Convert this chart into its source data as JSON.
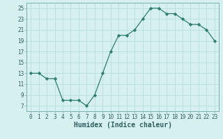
{
  "x": [
    0,
    1,
    2,
    3,
    4,
    5,
    6,
    7,
    8,
    9,
    10,
    11,
    12,
    13,
    14,
    15,
    16,
    17,
    18,
    19,
    20,
    21,
    22,
    23
  ],
  "y": [
    13,
    13,
    12,
    12,
    8,
    8,
    8,
    7,
    9,
    13,
    17,
    20,
    20,
    21,
    23,
    25,
    25,
    24,
    24,
    23,
    22,
    22,
    21,
    19
  ],
  "line_color": "#2e7d6e",
  "marker": "D",
  "marker_size": 2.2,
  "bg_color": "#d6efef",
  "grid_color": "#b8dede",
  "xlabel": "Humidex (Indice chaleur)",
  "ylim": [
    6,
    26
  ],
  "xlim": [
    -0.5,
    23.5
  ],
  "yticks": [
    7,
    9,
    11,
    13,
    15,
    17,
    19,
    21,
    23,
    25
  ],
  "xticks": [
    0,
    1,
    2,
    3,
    4,
    5,
    6,
    7,
    8,
    9,
    10,
    11,
    12,
    13,
    14,
    15,
    16,
    17,
    18,
    19,
    20,
    21,
    22,
    23
  ],
  "tick_fontsize": 5.5,
  "xlabel_fontsize": 7.0
}
